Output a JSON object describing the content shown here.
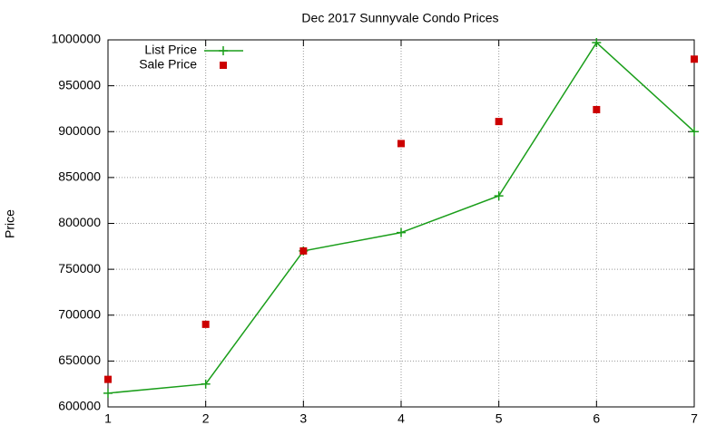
{
  "chart_data": {
    "type": "line",
    "title": "Dec 2017 Sunnyvale Condo Prices",
    "y_label": "Price",
    "x": [
      1,
      2,
      3,
      4,
      5,
      6,
      7
    ],
    "series": [
      {
        "name": "List Price",
        "color": "#1a9e1a",
        "style": "linespoints",
        "marker": "plus",
        "values": [
          615000,
          625000,
          770000,
          790000,
          830000,
          997000,
          900000
        ]
      },
      {
        "name": "Sale Price",
        "color": "#cc0000",
        "style": "points",
        "marker": "square",
        "values": [
          630000,
          690000,
          770000,
          887000,
          911000,
          924000,
          979000
        ]
      }
    ],
    "xlim": [
      1,
      7
    ],
    "xticks": [
      1,
      2,
      3,
      4,
      5,
      6,
      7
    ],
    "ylim": [
      600000,
      1000000
    ],
    "yticks": [
      600000,
      650000,
      700000,
      750000,
      800000,
      850000,
      900000,
      950000,
      1000000
    ],
    "grid": true,
    "legend": "top-left"
  }
}
